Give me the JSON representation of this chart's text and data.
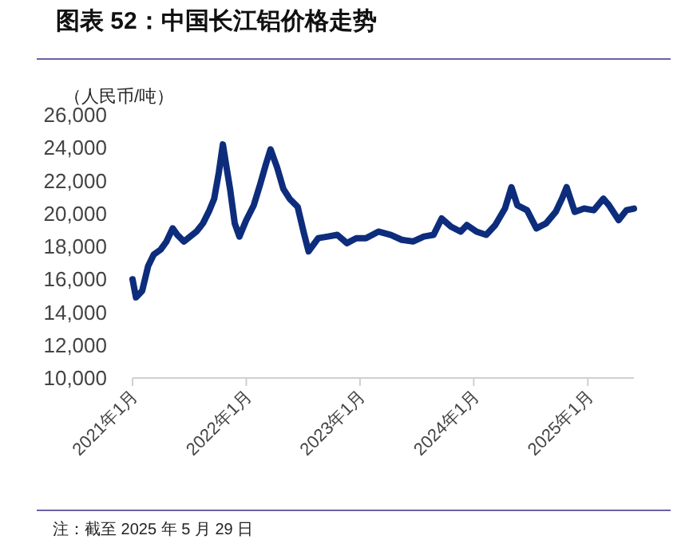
{
  "chart_data": {
    "type": "line",
    "title": "图表 52：中国长江铝价格走势",
    "ylabel": "（人民币/吨）",
    "annotations": [
      "注：截至 2025 年 5 月 29 日"
    ],
    "xlim": [
      "2021-01-01",
      "2025-05-29"
    ],
    "xticks": [
      {
        "value": "2021-01-01",
        "label": "2021年1月"
      },
      {
        "value": "2022-01-01",
        "label": "2022年1月"
      },
      {
        "value": "2023-01-01",
        "label": "2023年1月"
      },
      {
        "value": "2024-01-01",
        "label": "2024年1月"
      },
      {
        "value": "2025-01-01",
        "label": "2025年1月"
      }
    ],
    "ylim": [
      10000,
      26000
    ],
    "yticks": [
      {
        "value": 10000,
        "label": "10,000"
      },
      {
        "value": 12000,
        "label": "12,000"
      },
      {
        "value": 14000,
        "label": "14,000"
      },
      {
        "value": 16000,
        "label": "16,000"
      },
      {
        "value": 18000,
        "label": "18,000"
      },
      {
        "value": 20000,
        "label": "20,000"
      },
      {
        "value": 22000,
        "label": "22,000"
      },
      {
        "value": 24000,
        "label": "24,000"
      },
      {
        "value": 26000,
        "label": "26,000"
      }
    ],
    "marker": "none",
    "line_style": "solid",
    "series": [
      {
        "color": "#0d2d7c",
        "x": [
          "2021-01-01",
          "2021-01-12",
          "2021-02-01",
          "2021-02-20",
          "2021-03-10",
          "2021-04-01",
          "2021-04-20",
          "2021-05-10",
          "2021-05-25",
          "2021-06-15",
          "2021-07-05",
          "2021-07-25",
          "2021-08-15",
          "2021-09-05",
          "2021-09-20",
          "2021-10-05",
          "2021-10-18",
          "2021-10-28",
          "2021-11-10",
          "2021-11-25",
          "2021-12-10",
          "2022-01-01",
          "2022-01-25",
          "2022-02-15",
          "2022-03-05",
          "2022-03-20",
          "2022-04-10",
          "2022-04-30",
          "2022-05-20",
          "2022-06-15",
          "2022-07-05",
          "2022-07-20",
          "2022-08-20",
          "2022-09-20",
          "2022-10-20",
          "2022-11-20",
          "2022-12-20",
          "2023-01-20",
          "2023-03-01",
          "2023-04-10",
          "2023-05-15",
          "2023-06-20",
          "2023-07-25",
          "2023-08-25",
          "2023-09-20",
          "2023-10-20",
          "2023-11-20",
          "2023-12-10",
          "2024-01-10",
          "2024-02-10",
          "2024-03-10",
          "2024-04-10",
          "2024-05-01",
          "2024-05-20",
          "2024-06-20",
          "2024-07-20",
          "2024-08-20",
          "2024-09-20",
          "2024-10-10",
          "2024-10-25",
          "2024-11-20",
          "2024-12-20",
          "2025-01-20",
          "2025-02-20",
          "2025-03-10",
          "2025-04-10",
          "2025-05-05",
          "2025-05-29"
        ],
        "values": [
          16000,
          14900,
          15300,
          16800,
          17500,
          17800,
          18300,
          19100,
          18700,
          18300,
          18600,
          18900,
          19400,
          20200,
          20900,
          22500,
          24200,
          23000,
          21500,
          19400,
          18600,
          19600,
          20500,
          21800,
          23000,
          23900,
          22800,
          21500,
          20900,
          20400,
          18800,
          17700,
          18500,
          18600,
          18700,
          18200,
          18500,
          18500,
          18900,
          18700,
          18400,
          18300,
          18600,
          18700,
          19700,
          19200,
          18900,
          19300,
          18900,
          18700,
          19300,
          20300,
          21600,
          20500,
          20200,
          19100,
          19400,
          20100,
          20900,
          21600,
          20100,
          20300,
          20200,
          20900,
          20500,
          19600,
          20200,
          20300
        ]
      }
    ]
  }
}
